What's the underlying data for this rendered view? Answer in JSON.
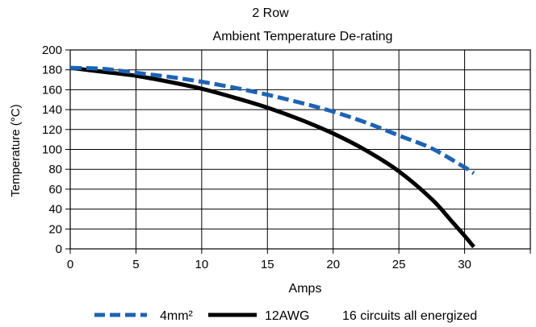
{
  "chart_data": {
    "type": "line",
    "title": "2 Row",
    "subtitle": "Ambient Temperature De-rating",
    "xlabel": "Amps",
    "ylabel": "Temperature (°C)",
    "xlim": [
      0,
      35
    ],
    "ylim": [
      0,
      200
    ],
    "x_ticks": [
      0,
      5,
      10,
      15,
      20,
      25,
      30
    ],
    "y_ticks": [
      0,
      20,
      40,
      60,
      80,
      100,
      120,
      140,
      160,
      180,
      200
    ],
    "grid": true,
    "legend_position": "bottom",
    "note": "16 circuits all energized",
    "series": [
      {
        "name": "4mm²",
        "style": "dashed",
        "color": "#1c63b7",
        "x": [
          0,
          2.5,
          5,
          7.5,
          10,
          12.5,
          15,
          17.5,
          20,
          22.5,
          25,
          27.5,
          30,
          30.7
        ],
        "y": [
          182,
          181,
          177,
          173,
          168,
          162,
          155,
          147,
          138,
          127,
          114,
          101,
          82,
          76
        ]
      },
      {
        "name": "12AWG",
        "style": "solid",
        "color": "#000000",
        "x": [
          0,
          2.5,
          5,
          7.5,
          10,
          12.5,
          15,
          17.5,
          20,
          22.5,
          25,
          27.5,
          29,
          30,
          30.7
        ],
        "y": [
          182,
          178,
          174,
          168,
          161,
          152,
          142,
          130,
          116,
          99,
          78,
          50,
          28,
          13,
          2
        ]
      }
    ]
  }
}
